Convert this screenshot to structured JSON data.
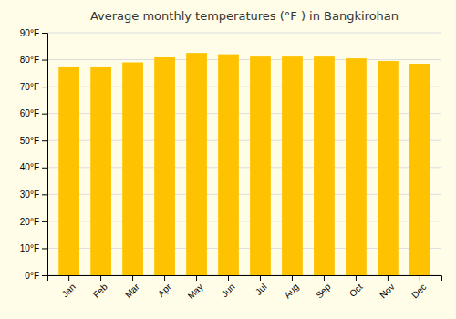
{
  "chart_data": {
    "type": "bar",
    "title": "Average monthly temperatures (°F ) in Bangkirohan",
    "categories": [
      "Jan",
      "Feb",
      "Mar",
      "Apr",
      "May",
      "Jun",
      "Jul",
      "Aug",
      "Sep",
      "Oct",
      "Nov",
      "Dec"
    ],
    "values": [
      77.5,
      77.5,
      79.0,
      81.0,
      82.5,
      82.0,
      81.5,
      81.5,
      81.5,
      80.5,
      79.5,
      78.5
    ],
    "color": "#FFC200",
    "ylim": [
      0,
      90
    ],
    "yticks": [
      {
        "value": 0,
        "label": "0°F"
      },
      {
        "value": 10,
        "label": "10°F"
      },
      {
        "value": 20,
        "label": "20°F"
      },
      {
        "value": 30,
        "label": "30°F"
      },
      {
        "value": 40,
        "label": "40°F"
      },
      {
        "value": 50,
        "label": "50°F"
      },
      {
        "value": 60,
        "label": "60°F"
      },
      {
        "value": 70,
        "label": "70°F"
      },
      {
        "value": 80,
        "label": "80°F"
      },
      {
        "value": 90,
        "label": "90°F"
      }
    ],
    "grid": true
  }
}
